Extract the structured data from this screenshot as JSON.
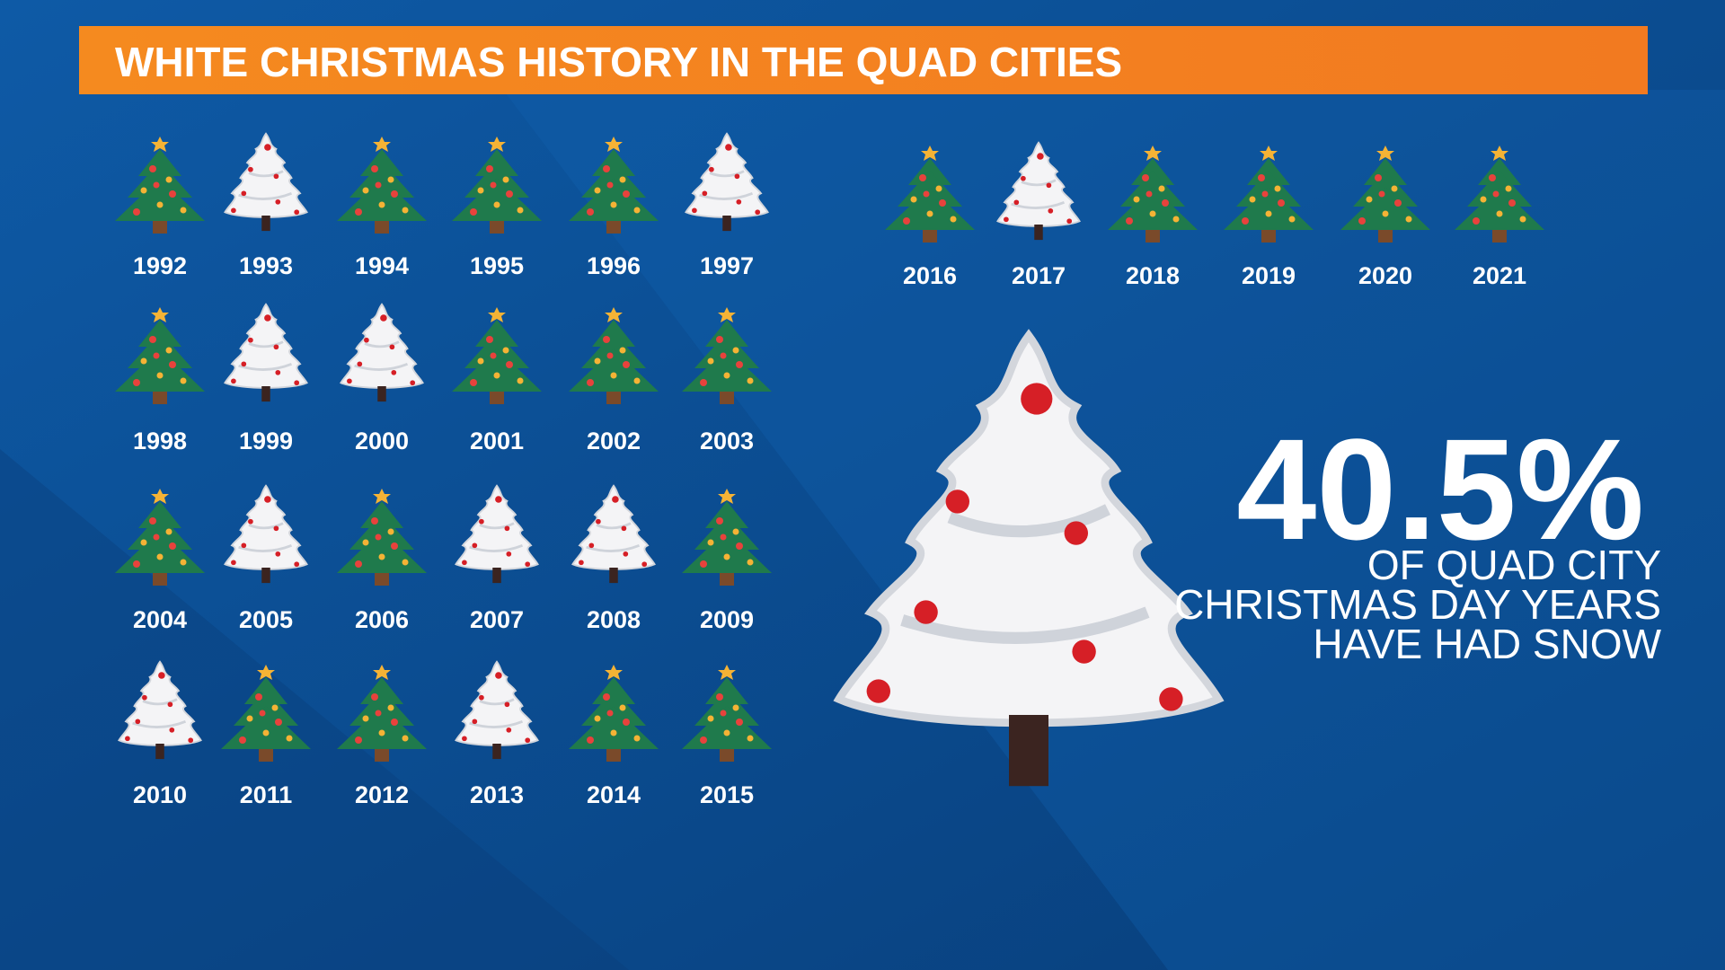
{
  "title": "WHITE CHRISTMAS HISTORY IN THE QUAD CITIES",
  "years": [
    {
      "year": "1992",
      "white": false
    },
    {
      "year": "1993",
      "white": true
    },
    {
      "year": "1994",
      "white": false
    },
    {
      "year": "1995",
      "white": false
    },
    {
      "year": "1996",
      "white": false
    },
    {
      "year": "1997",
      "white": true
    },
    {
      "year": "1998",
      "white": false
    },
    {
      "year": "1999",
      "white": true
    },
    {
      "year": "2000",
      "white": true
    },
    {
      "year": "2001",
      "white": false
    },
    {
      "year": "2002",
      "white": false
    },
    {
      "year": "2003",
      "white": false
    },
    {
      "year": "2004",
      "white": false
    },
    {
      "year": "2005",
      "white": true
    },
    {
      "year": "2006",
      "white": false
    },
    {
      "year": "2007",
      "white": true
    },
    {
      "year": "2008",
      "white": true
    },
    {
      "year": "2009",
      "white": false
    },
    {
      "year": "2010",
      "white": true
    },
    {
      "year": "2011",
      "white": false
    },
    {
      "year": "2012",
      "white": false
    },
    {
      "year": "2013",
      "white": true
    },
    {
      "year": "2014",
      "white": false
    },
    {
      "year": "2015",
      "white": false
    },
    {
      "year": "2016",
      "white": false
    },
    {
      "year": "2017",
      "white": true
    },
    {
      "year": "2018",
      "white": false
    },
    {
      "year": "2019",
      "white": false
    },
    {
      "year": "2020",
      "white": false
    },
    {
      "year": "2021",
      "white": false
    }
  ],
  "stat": {
    "value": "40.5%",
    "caption": [
      "OF QUAD CITY",
      "CHRISTMAS DAY YEARS",
      "HAVE HAD SNOW"
    ]
  }
}
